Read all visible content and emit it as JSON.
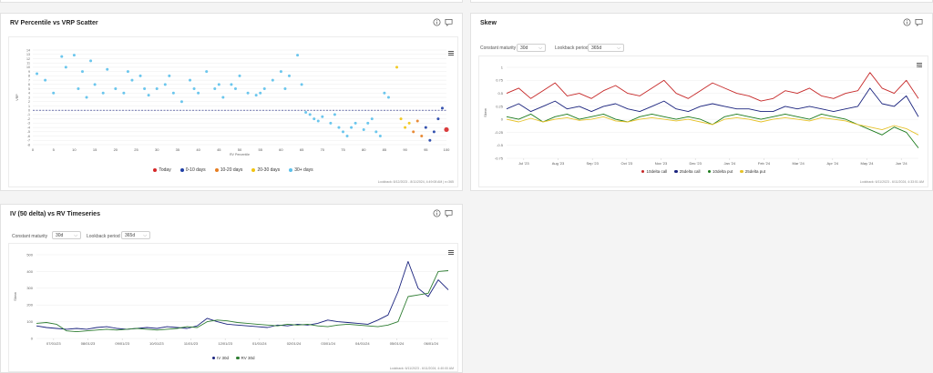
{
  "scatter_card": {
    "title": "RV Percentile vs VRP Scatter",
    "footer": "Lookback: 8/12/2023 - 8/11/2024, 4:49:08 AM | n=365",
    "legend": [
      {
        "label": "Today",
        "color": "#d62728"
      },
      {
        "label": "0-10 days",
        "color": "#1f3fa6"
      },
      {
        "label": "10-20 days",
        "color": "#e67e22"
      },
      {
        "label": "20-30 days",
        "color": "#f1c40f"
      },
      {
        "label": "30+ days",
        "color": "#5bc0eb"
      }
    ]
  },
  "skew_card": {
    "title": "Skew",
    "maturity_label": "Constant maturity",
    "maturity_value": "30d",
    "lookback_label": "Lookback period",
    "lookback_value": "365d",
    "footer": "Lookback: 6/11/2023 - 6/11/2024, 4:33:51 AM",
    "legend": [
      {
        "label": "10delta call",
        "color": "#c62828"
      },
      {
        "label": "25delta call",
        "color": "#1a237e"
      },
      {
        "label": "10delta put",
        "color": "#1b7a1b"
      },
      {
        "label": "25delta put",
        "color": "#e6c229"
      }
    ]
  },
  "iv_card": {
    "title": "IV (50 delta) vs RV Timeseries",
    "maturity_label": "Constant maturity",
    "maturity_value": "30d",
    "lookback_label": "Lookback period",
    "lookback_value": "365d",
    "footer": "Lookback: 6/11/2023 - 6/11/2024, 4:40:00 AM",
    "legend": [
      {
        "label": "IV 30d",
        "color": "#1a237e"
      },
      {
        "label": "RV 30d",
        "color": "#2e7d32"
      }
    ]
  },
  "chart_data": [
    {
      "type": "scatter",
      "xlabel": "RV Percentile",
      "ylabel": "VRP",
      "xlim": [
        0,
        100
      ],
      "x_ticks": [
        0,
        5,
        10,
        15,
        20,
        25,
        30,
        35,
        40,
        45,
        50,
        55,
        60,
        65,
        70,
        75,
        80,
        85,
        90,
        95,
        100
      ],
      "y_ticks": [
        14,
        13,
        12,
        11,
        10,
        9,
        8,
        7,
        6,
        5,
        4,
        3,
        2,
        1,
        0,
        -1,
        -2,
        -3,
        -4,
        -5,
        -6,
        -7,
        -8
      ],
      "ylim": [
        -8,
        14
      ],
      "reference_line": 0,
      "groups": [
        {
          "name": "30+ days",
          "color": "#5bc0eb",
          "points": [
            [
              1,
              8.5
            ],
            [
              3,
              7
            ],
            [
              7,
              12.5
            ],
            [
              8,
              10
            ],
            [
              10,
              12.8
            ],
            [
              12,
              9
            ],
            [
              13,
              3
            ],
            [
              14,
              11.5
            ],
            [
              15,
              6
            ],
            [
              18,
              9.5
            ],
            [
              20,
              5
            ],
            [
              22,
              4
            ],
            [
              24,
              7
            ],
            [
              26,
              8
            ],
            [
              28,
              3.5
            ],
            [
              30,
              5
            ],
            [
              32,
              6
            ],
            [
              34,
              4
            ],
            [
              36,
              2
            ],
            [
              38,
              7
            ],
            [
              40,
              4
            ],
            [
              42,
              9
            ],
            [
              44,
              5
            ],
            [
              46,
              3
            ],
            [
              48,
              6
            ],
            [
              50,
              8
            ],
            [
              52,
              4
            ],
            [
              54,
              3.5
            ],
            [
              56,
              5
            ],
            [
              58,
              7
            ],
            [
              60,
              9
            ],
            [
              62,
              8
            ],
            [
              64,
              12.8
            ],
            [
              65,
              6
            ],
            [
              66,
              -0.5
            ],
            [
              67,
              -1
            ],
            [
              68,
              -2
            ],
            [
              70,
              -1.5
            ],
            [
              72,
              -3
            ],
            [
              74,
              -4
            ],
            [
              75,
              -5
            ],
            [
              76,
              -6
            ],
            [
              78,
              -3
            ],
            [
              80,
              -4.5
            ],
            [
              82,
              -2
            ],
            [
              84,
              -6
            ],
            [
              85,
              4
            ],
            [
              86,
              3
            ],
            [
              5,
              4
            ],
            [
              11,
              5
            ],
            [
              17,
              4
            ],
            [
              23,
              9
            ],
            [
              27,
              5
            ],
            [
              33,
              8
            ],
            [
              39,
              5
            ],
            [
              45,
              6
            ],
            [
              49,
              5
            ],
            [
              55,
              4
            ],
            [
              61,
              5
            ],
            [
              69,
              -2.5
            ],
            [
              73,
              -1
            ],
            [
              77,
              -4
            ],
            [
              81,
              -3
            ],
            [
              83,
              -5
            ]
          ]
        },
        {
          "name": "20-30 days",
          "color": "#f1c40f",
          "points": [
            [
              88,
              10
            ],
            [
              89,
              -2
            ],
            [
              90,
              -4
            ],
            [
              91,
              -3
            ]
          ]
        },
        {
          "name": "10-20 days",
          "color": "#e67e22",
          "points": [
            [
              92,
              -5
            ],
            [
              93,
              -2.5
            ],
            [
              94,
              -6
            ]
          ]
        },
        {
          "name": "0-10 days",
          "color": "#1f3fa6",
          "points": [
            [
              95,
              -4
            ],
            [
              96,
              -7
            ],
            [
              97,
              -5
            ],
            [
              98,
              -2
            ],
            [
              99,
              0.5
            ]
          ]
        },
        {
          "name": "Today",
          "color": "#d62728",
          "points": [
            [
              100,
              -4.5
            ]
          ]
        }
      ]
    },
    {
      "type": "line",
      "ylabel": "Skew",
      "x_ticks": [
        "Jul '23",
        "Aug '23",
        "Sep '23",
        "Oct '23",
        "Nov '23",
        "Dec '23",
        "Jan '24",
        "Feb '24",
        "Mar '24",
        "Apr '24",
        "May '24",
        "Jun '24"
      ],
      "y_ticks": [
        1,
        0.75,
        0.5,
        0.25,
        0,
        -0.25,
        -0.5,
        -0.75
      ],
      "ylim": [
        -0.75,
        1
      ],
      "series": [
        {
          "name": "10delta call",
          "color": "#c62828",
          "values": [
            0.5,
            0.6,
            0.4,
            0.55,
            0.7,
            0.45,
            0.5,
            0.4,
            0.55,
            0.65,
            0.5,
            0.45,
            0.6,
            0.75,
            0.5,
            0.4,
            0.55,
            0.7,
            0.6,
            0.5,
            0.45,
            0.35,
            0.4,
            0.55,
            0.5,
            0.6,
            0.45,
            0.4,
            0.5,
            0.55,
            0.9,
            0.6,
            0.5,
            0.75,
            0.4
          ]
        },
        {
          "name": "25delta call",
          "color": "#1a237e",
          "values": [
            0.2,
            0.3,
            0.15,
            0.25,
            0.35,
            0.2,
            0.25,
            0.15,
            0.25,
            0.3,
            0.2,
            0.15,
            0.25,
            0.35,
            0.2,
            0.15,
            0.25,
            0.3,
            0.25,
            0.2,
            0.2,
            0.15,
            0.15,
            0.25,
            0.2,
            0.25,
            0.2,
            0.15,
            0.2,
            0.25,
            0.6,
            0.3,
            0.25,
            0.45,
            0.05
          ]
        },
        {
          "name": "10delta put",
          "color": "#1b7a1b",
          "values": [
            0.05,
            0.0,
            0.1,
            -0.05,
            0.05,
            0.1,
            0.0,
            0.05,
            0.1,
            0.0,
            -0.05,
            0.05,
            0.1,
            0.05,
            0.0,
            0.05,
            0.0,
            -0.1,
            0.05,
            0.1,
            0.05,
            0.0,
            0.05,
            0.1,
            0.05,
            0.0,
            0.1,
            0.05,
            0.0,
            -0.1,
            -0.2,
            -0.3,
            -0.15,
            -0.25,
            -0.55
          ]
        },
        {
          "name": "25delta put",
          "color": "#e6c229",
          "values": [
            0.0,
            -0.05,
            0.02,
            -0.05,
            0.0,
            0.03,
            -0.02,
            0.0,
            0.05,
            -0.03,
            -0.05,
            0.0,
            0.03,
            0.0,
            -0.03,
            0.0,
            -0.05,
            -0.1,
            0.0,
            0.03,
            0.0,
            -0.05,
            0.0,
            0.03,
            0.0,
            -0.03,
            0.03,
            0.0,
            -0.03,
            -0.1,
            -0.15,
            -0.2,
            -0.12,
            -0.18,
            -0.3
          ]
        }
      ]
    },
    {
      "type": "line",
      "ylabel": "Skew",
      "x_ticks": [
        "07/01/23",
        "08/01/23",
        "09/01/23",
        "10/01/23",
        "11/01/23",
        "12/01/23",
        "01/01/24",
        "02/01/24",
        "03/01/24",
        "04/01/24",
        "05/01/24",
        "06/01/24"
      ],
      "y_ticks": [
        500,
        400,
        300,
        200,
        100,
        0
      ],
      "ylim": [
        0,
        500
      ],
      "series": [
        {
          "name": "IV 30d",
          "color": "#1a237e",
          "values": [
            75,
            65,
            60,
            55,
            60,
            55,
            65,
            70,
            60,
            55,
            60,
            65,
            60,
            70,
            65,
            60,
            75,
            120,
            100,
            85,
            80,
            75,
            70,
            65,
            80,
            75,
            85,
            80,
            90,
            110,
            100,
            95,
            90,
            85,
            110,
            140,
            280,
            460,
            300,
            250,
            350,
            290
          ]
        },
        {
          "name": "RV 30d",
          "color": "#2e7d32",
          "values": [
            90,
            95,
            85,
            45,
            40,
            45,
            50,
            55,
            50,
            55,
            60,
            55,
            50,
            55,
            60,
            70,
            65,
            100,
            110,
            105,
            95,
            90,
            85,
            80,
            75,
            85,
            80,
            85,
            75,
            70,
            80,
            85,
            80,
            75,
            70,
            80,
            100,
            250,
            260,
            270,
            400,
            405
          ]
        }
      ]
    }
  ]
}
